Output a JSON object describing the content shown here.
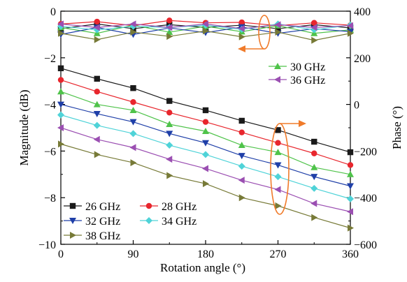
{
  "chart_data": {
    "type": "line",
    "xlabel": "Rotation angle (°)",
    "ylabel_left": "Magnitude (dB)",
    "ylabel_right": "Phase (°)",
    "x": [
      0,
      45,
      90,
      135,
      180,
      225,
      270,
      315,
      360
    ],
    "x_ticks": [
      0,
      90,
      180,
      270,
      360
    ],
    "x_tick_labels": [
      "0",
      "90",
      "180",
      "270",
      "360"
    ],
    "xlim": [
      0,
      360
    ],
    "ylim_left": [
      -10,
      0
    ],
    "y_ticks_left": [
      0,
      -2,
      -4,
      -6,
      -8,
      -10
    ],
    "y_tick_labels_left": [
      "0",
      "−2",
      "−4",
      "−6",
      "−8",
      "−10"
    ],
    "ylim_right": [
      -600,
      400
    ],
    "y_ticks_right": [
      400,
      200,
      0,
      -200,
      -400,
      -600
    ],
    "y_tick_labels_right": [
      "400",
      "200",
      "0",
      "−200",
      "−400",
      "−600"
    ],
    "grid": false,
    "series": [
      {
        "name": "26 GHz",
        "color": "#1a1a1a",
        "marker": "square",
        "magnitude": [
          -2.45,
          -2.9,
          -3.3,
          -3.85,
          -4.25,
          -4.7,
          -5.1,
          -5.6,
          -6.05
        ],
        "phase": [
          325,
          345,
          325,
          342,
          330,
          340,
          325,
          342,
          328
        ]
      },
      {
        "name": "28 GHz",
        "color": "#e8262d",
        "marker": "circle",
        "magnitude": [
          -2.95,
          -3.45,
          -3.9,
          -4.35,
          -4.75,
          -5.2,
          -5.65,
          -6.1,
          -6.6
        ],
        "phase": [
          345,
          355,
          338,
          360,
          350,
          352,
          338,
          350,
          340
        ]
      },
      {
        "name": "30 GHz",
        "color": "#4fc34a",
        "marker": "triangle-up",
        "magnitude": [
          -3.45,
          -4.0,
          -4.25,
          -4.85,
          -5.15,
          -5.75,
          -6.05,
          -6.7,
          -7.0
        ],
        "phase": [
          330,
          305,
          340,
          310,
          335,
          312,
          338,
          305,
          320
        ]
      },
      {
        "name": "32 GHz",
        "color": "#1f3fa8",
        "marker": "triangle-down",
        "magnitude": [
          -4.0,
          -4.4,
          -4.75,
          -5.25,
          -5.65,
          -6.2,
          -6.6,
          -7.1,
          -7.5
        ],
        "phase": [
          300,
          330,
          300,
          328,
          308,
          332,
          305,
          325,
          312
        ]
      },
      {
        "name": "34 GHz",
        "color": "#4fd3d8",
        "marker": "diamond",
        "magnitude": [
          -4.45,
          -4.9,
          -5.25,
          -5.75,
          -6.15,
          -6.65,
          -7.1,
          -7.6,
          -8.05
        ],
        "phase": [
          335,
          320,
          335,
          330,
          340,
          322,
          345,
          320,
          340
        ]
      },
      {
        "name": "36 GHz",
        "color": "#9b4fb2",
        "marker": "triangle-left",
        "magnitude": [
          -5.0,
          -5.5,
          -5.85,
          -6.35,
          -6.75,
          -7.25,
          -7.65,
          -8.25,
          -8.6
        ],
        "phase": [
          345,
          330,
          345,
          330,
          345,
          325,
          342,
          330,
          338
        ]
      },
      {
        "name": "38 GHz",
        "color": "#777a37",
        "marker": "triangle-right",
        "magnitude": [
          -5.7,
          -6.15,
          -6.5,
          -7.05,
          -7.4,
          -8.0,
          -8.35,
          -8.85,
          -9.3
        ],
        "phase": [
          305,
          278,
          310,
          292,
          315,
          290,
          310,
          275,
          305
        ]
      }
    ],
    "legend_groups": [
      {
        "placement": "upper-right",
        "series": [
          "30 GHz",
          "36 GHz"
        ]
      },
      {
        "placement": "lower-left",
        "series": [
          "26 GHz",
          "28 GHz",
          "32 GHz",
          "34 GHz",
          "38 GHz"
        ]
      }
    ],
    "annotations": [
      {
        "shape": "ellipse",
        "color": "#f07b2a",
        "marks": "phase curves",
        "arrow_toward": "left axis"
      },
      {
        "shape": "ellipse",
        "color": "#f07b2a",
        "marks": "magnitude curves",
        "arrow_toward": "right axis"
      }
    ]
  }
}
